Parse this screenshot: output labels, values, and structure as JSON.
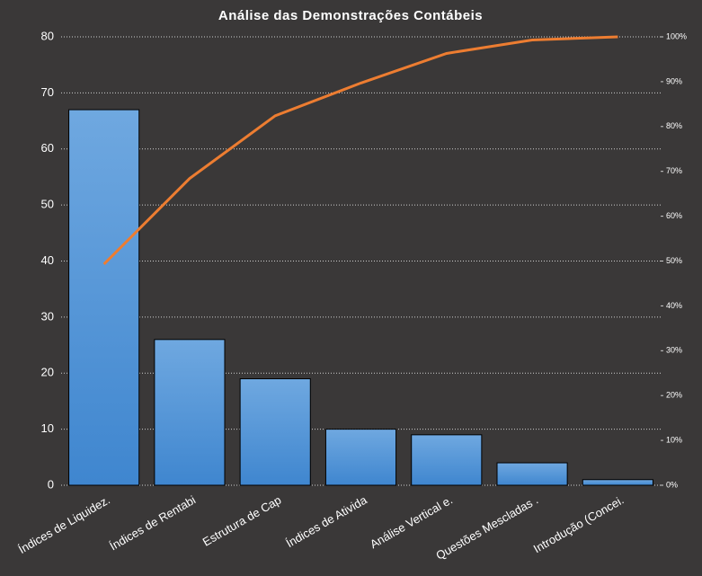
{
  "chart_data": {
    "type": "bar",
    "title": "Análise das Demonstrações Contábeis",
    "categories": [
      "Índices de Liquidez.",
      "Índices de Rentabi",
      "Estrutura de Cap",
      "Índices de Ativida",
      "Análise Vertical e.",
      "Questões Mescladas .",
      "Introdução  (Concei."
    ],
    "series": [
      {
        "type": "bar",
        "color": "#4a90d9",
        "values": [
          67,
          26,
          19,
          10,
          9,
          4,
          1
        ]
      },
      {
        "type": "line",
        "axis": "y2",
        "color": "#ed7d31",
        "values": [
          49.3,
          68.4,
          82.4,
          89.7,
          96.3,
          99.3,
          100
        ]
      }
    ],
    "ylim": [
      0,
      80
    ],
    "yticks": [
      0,
      10,
      20,
      30,
      40,
      50,
      60,
      70,
      80
    ],
    "y2lim": [
      0,
      100
    ],
    "y2ticks": [
      {
        "value": 0,
        "label": "0%"
      },
      {
        "value": 10,
        "label": "10%"
      },
      {
        "value": 20,
        "label": "20%"
      },
      {
        "value": 30,
        "label": "30%"
      },
      {
        "value": 40,
        "label": "40%"
      },
      {
        "value": 50,
        "label": "50%"
      },
      {
        "value": 60,
        "label": "60%"
      },
      {
        "value": 70,
        "label": "70%"
      },
      {
        "value": 80,
        "label": "80%"
      },
      {
        "value": 90,
        "label": "90%"
      },
      {
        "value": 100,
        "label": "100%"
      }
    ],
    "grid": true
  }
}
